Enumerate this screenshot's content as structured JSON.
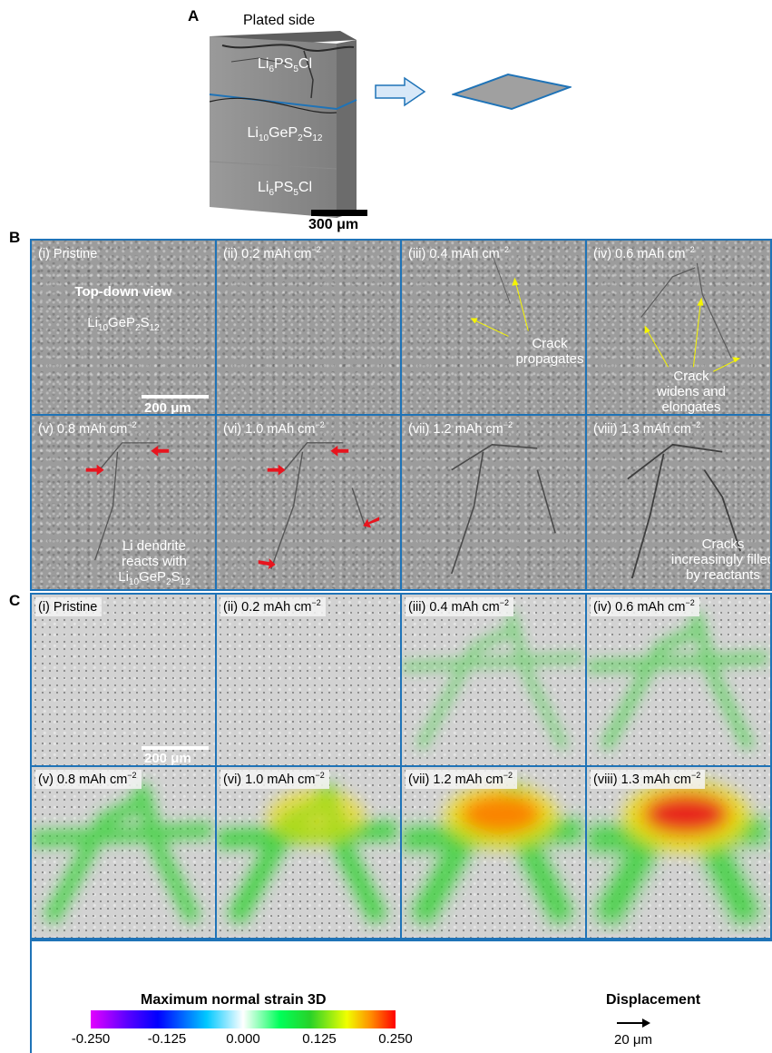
{
  "panel_a": {
    "letter": "A",
    "plated_side": "Plated side",
    "layer_top": {
      "base": "Li",
      "s1": "6",
      "mid": "PS",
      "s2": "5",
      "end": "Cl"
    },
    "layer_mid": {
      "base": "Li",
      "s1": "10",
      "mid": "GeP",
      "s2": "2",
      "mid2": "S",
      "s3": "12"
    },
    "layer_bot": {
      "base": "Li",
      "s1": "6",
      "mid": "PS",
      "s2": "5",
      "end": "Cl"
    },
    "scale_bar": "300 μm"
  },
  "panel_b": {
    "letter": "B",
    "cells": [
      {
        "prefix": "(i) Pristine",
        "unit": ""
      },
      {
        "prefix": "(ii) 0.2 mAh cm",
        "unit": "−2"
      },
      {
        "prefix": "(iii) 0.4 mAh cm",
        "unit": "−2"
      },
      {
        "prefix": "(iv) 0.6 mAh cm",
        "unit": "−2"
      },
      {
        "prefix": "(v) 0.8 mAh cm",
        "unit": "−2"
      },
      {
        "prefix": "(vi) 1.0 mAh cm",
        "unit": "−2"
      },
      {
        "prefix": "(vii) 1.2 mAh cm",
        "unit": "−2"
      },
      {
        "prefix": "(viii) 1.3 mAh cm",
        "unit": "−2"
      }
    ],
    "top_down": "Top-down view",
    "material": {
      "base": "Li",
      "s1": "10",
      "mid": "GeP",
      "s2": "2",
      "mid2": "S",
      "s3": "12"
    },
    "scale_bar": "200 μm",
    "note_iii": "Crack propagates",
    "note_iv_1": "Crack",
    "note_iv_2": "widens and",
    "note_iv_3": "elongates",
    "note_v_1": "Li dendrite",
    "note_v_2": "reacts with",
    "note_viii_1": "Cracks",
    "note_viii_2": "increasingly filled",
    "note_viii_3": "by reactants"
  },
  "panel_c": {
    "letter": "C",
    "cells": [
      {
        "prefix": "(i) Pristine",
        "unit": ""
      },
      {
        "prefix": "(ii) 0.2 mAh cm",
        "unit": "−2"
      },
      {
        "prefix": "(iii) 0.4 mAh cm",
        "unit": "−2"
      },
      {
        "prefix": "(iv) 0.6 mAh cm",
        "unit": "−2"
      },
      {
        "prefix": "(v) 0.8 mAh cm",
        "unit": "−2"
      },
      {
        "prefix": "(vi) 1.0 mAh cm",
        "unit": "−2"
      },
      {
        "prefix": "(vii) 1.2 mAh cm",
        "unit": "−2"
      },
      {
        "prefix": "(viii) 1.3 mAh cm",
        "unit": "−2"
      }
    ],
    "scale_bar": "200 μm",
    "strain_level": [
      0,
      0,
      0.15,
      0.25,
      0.45,
      0.6,
      0.8,
      0.95
    ]
  },
  "legend": {
    "colorbar_title": "Maximum normal strain 3D",
    "ticks": [
      "-0.250",
      "-0.125",
      "0.000",
      "0.125",
      "0.250"
    ],
    "displacement_title": "Displacement",
    "displacement_value": "20 μm"
  },
  "colors": {
    "frame": "#1f73b7",
    "annotation_arrow": "#f5f500",
    "marker_arrow": "#e8141e"
  }
}
